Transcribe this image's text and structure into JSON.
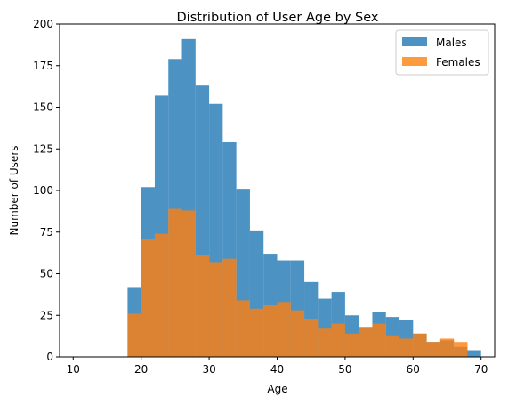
{
  "chart_data": {
    "type": "histogram",
    "title": "Distribution of User Age by Sex",
    "xlabel": "Age",
    "ylabel": "Number of Users",
    "xlim": [
      8,
      72
    ],
    "ylim": [
      0,
      200
    ],
    "xticks": [
      10,
      20,
      30,
      40,
      50,
      60,
      70
    ],
    "yticks": [
      0,
      25,
      50,
      75,
      100,
      125,
      150,
      175,
      200
    ],
    "bin_edges": [
      18,
      20,
      22,
      24,
      26,
      28,
      30,
      32,
      34,
      36,
      38,
      40,
      42,
      44,
      46,
      48,
      50,
      52,
      54,
      56,
      58,
      60,
      62,
      64,
      66,
      68,
      70
    ],
    "legend_position": "top-right",
    "grid": false,
    "series": [
      {
        "name": "Males",
        "color": "#1f77b4",
        "alpha": 0.8,
        "values": [
          42,
          102,
          157,
          179,
          191,
          163,
          152,
          129,
          101,
          76,
          62,
          58,
          58,
          45,
          35,
          39,
          25,
          18,
          27,
          24,
          22,
          14,
          9,
          10,
          6,
          4
        ]
      },
      {
        "name": "Females",
        "color": "#ff7f0e",
        "alpha": 0.8,
        "values": [
          26,
          71,
          74,
          89,
          88,
          61,
          57,
          59,
          34,
          29,
          31,
          33,
          28,
          23,
          17,
          20,
          14,
          18,
          20,
          13,
          11,
          14,
          9,
          11,
          9,
          0
        ]
      }
    ]
  }
}
